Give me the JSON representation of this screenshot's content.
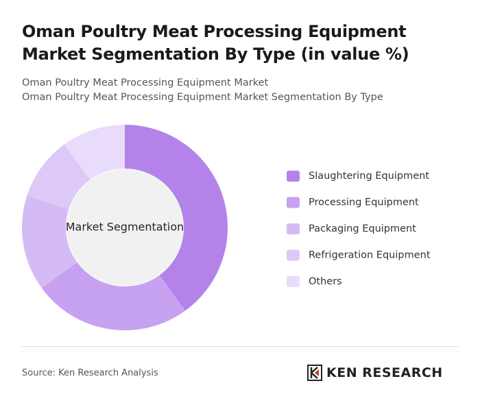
{
  "chart_data": {
    "type": "donut",
    "title": "Oman Poultry Meat Processing Equipment Market Segmentation By Type (in value %)",
    "subtitle": [
      "Oman Poultry Meat Processing Equipment Market",
      "Oman Poultry Meat Processing Equipment Market Segmentation By Type"
    ],
    "center_label": "Market Segmentation",
    "categories": [
      "Slaughtering Equipment",
      "Processing Equipment",
      "Packaging Equipment",
      "Refrigeration Equipment",
      "Others"
    ],
    "values": [
      40,
      25,
      15,
      10,
      10
    ],
    "colors": [
      "#b383ea",
      "#c6a2f1",
      "#d5bbf5",
      "#ddc9f7",
      "#e9dcfa"
    ],
    "source": "Source: Ken Research Analysis",
    "logo": "KEN RESEARCH"
  }
}
